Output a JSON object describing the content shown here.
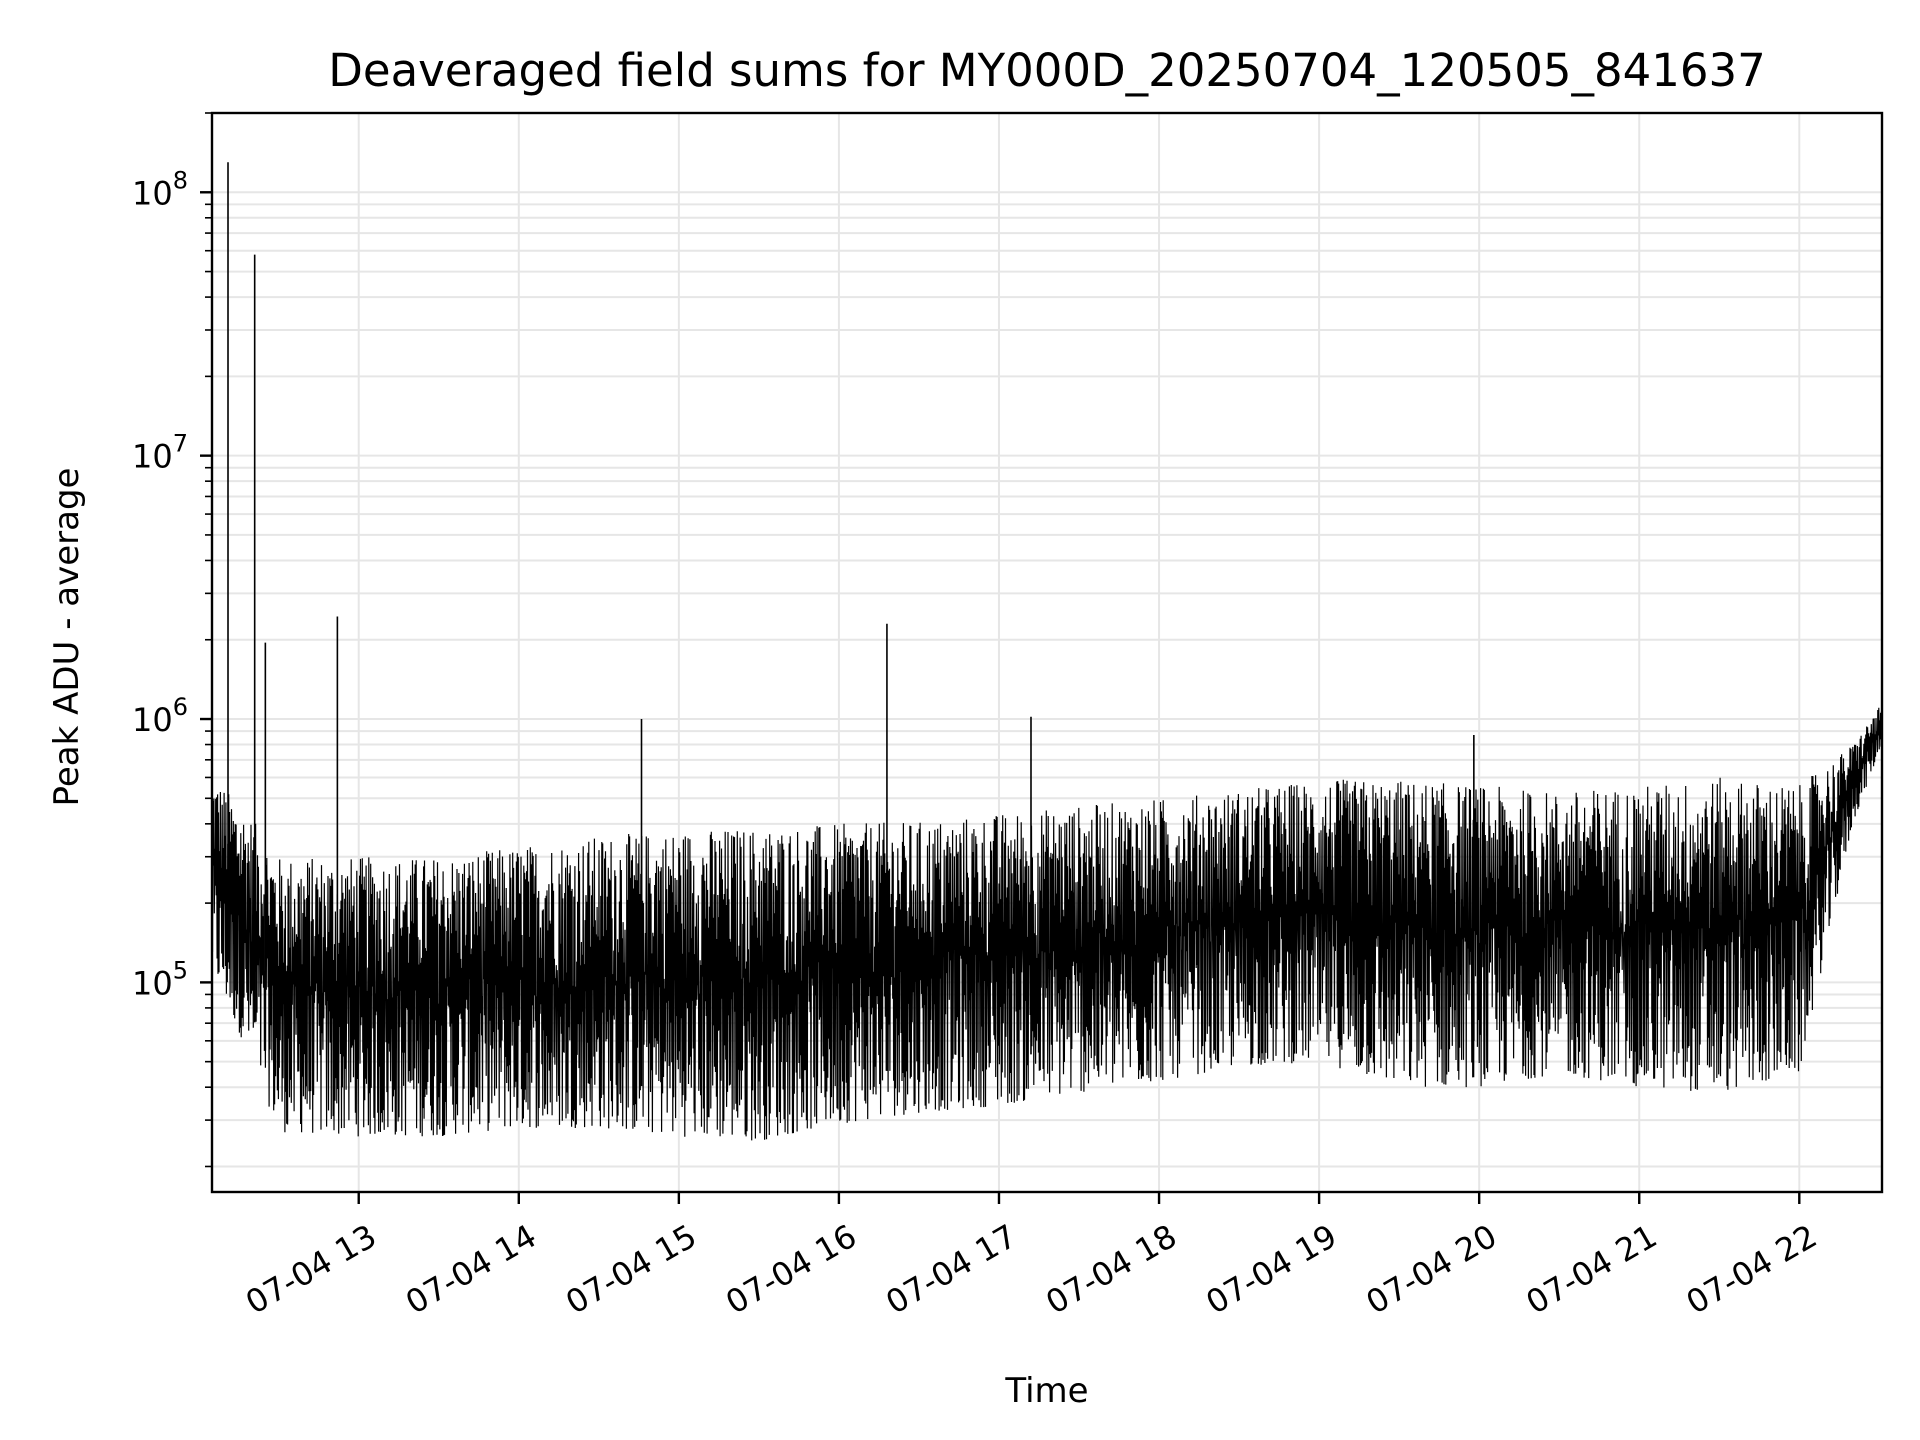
{
  "chart_data": {
    "type": "line",
    "title": "Deaveraged field sums for MY000D_20250704_120505_841637",
    "xlabel": "Time",
    "ylabel": "Peak ADU - average",
    "y_scale": "log",
    "ylim": [
      16000,
      200000000
    ],
    "xlim": [
      "2025-07-04 12:05",
      "2025-07-04 22:31"
    ],
    "grid": true,
    "line_color": "#000000",
    "grid_color": "#e6e6e6",
    "x_ticks": [
      {
        "value": "2025-07-04 13:00",
        "label": "07-04 13"
      },
      {
        "value": "2025-07-04 14:00",
        "label": "07-04 14"
      },
      {
        "value": "2025-07-04 15:00",
        "label": "07-04 15"
      },
      {
        "value": "2025-07-04 16:00",
        "label": "07-04 16"
      },
      {
        "value": "2025-07-04 17:00",
        "label": "07-04 17"
      },
      {
        "value": "2025-07-04 18:00",
        "label": "07-04 18"
      },
      {
        "value": "2025-07-04 19:00",
        "label": "07-04 19"
      },
      {
        "value": "2025-07-04 20:00",
        "label": "07-04 20"
      },
      {
        "value": "2025-07-04 21:00",
        "label": "07-04 21"
      },
      {
        "value": "2025-07-04 22:00",
        "label": "07-04 22"
      }
    ],
    "y_ticks": [
      {
        "value": 100000,
        "base": "10",
        "exp": "5"
      },
      {
        "value": 1000000,
        "base": "10",
        "exp": "6"
      },
      {
        "value": 10000000,
        "base": "10",
        "exp": "7"
      },
      {
        "value": 100000000,
        "base": "10",
        "exp": "8"
      }
    ],
    "envelope": [
      {
        "t": "2025-07-04 12:05",
        "low": 110000,
        "high": 620000
      },
      {
        "t": "2025-07-04 12:20",
        "low": 50000,
        "high": 420000
      },
      {
        "t": "2025-07-04 12:30",
        "low": 27000,
        "high": 300000
      },
      {
        "t": "2025-07-04 13:00",
        "low": 26000,
        "high": 300000
      },
      {
        "t": "2025-07-04 13:30",
        "low": 26000,
        "high": 300000
      },
      {
        "t": "2025-07-04 14:00",
        "low": 28000,
        "high": 330000
      },
      {
        "t": "2025-07-04 14:30",
        "low": 28000,
        "high": 360000
      },
      {
        "t": "2025-07-04 15:00",
        "low": 26000,
        "high": 380000
      },
      {
        "t": "2025-07-04 15:30",
        "low": 25000,
        "high": 390000
      },
      {
        "t": "2025-07-04 16:00",
        "low": 29000,
        "high": 400000
      },
      {
        "t": "2025-07-04 16:30",
        "low": 32000,
        "high": 410000
      },
      {
        "t": "2025-07-04 17:00",
        "low": 34000,
        "high": 440000
      },
      {
        "t": "2025-07-04 17:30",
        "low": 38000,
        "high": 470000
      },
      {
        "t": "2025-07-04 18:00",
        "low": 42000,
        "high": 500000
      },
      {
        "t": "2025-07-04 18:30",
        "low": 48000,
        "high": 540000
      },
      {
        "t": "2025-07-04 19:00",
        "low": 50000,
        "high": 590000
      },
      {
        "t": "2025-07-04 19:30",
        "low": 40000,
        "high": 590000
      },
      {
        "t": "2025-07-04 20:00",
        "low": 40000,
        "high": 560000
      },
      {
        "t": "2025-07-04 20:30",
        "low": 45000,
        "high": 530000
      },
      {
        "t": "2025-07-04 21:00",
        "low": 40000,
        "high": 560000
      },
      {
        "t": "2025-07-04 21:30",
        "low": 38000,
        "high": 600000
      },
      {
        "t": "2025-07-04 22:00",
        "low": 45000,
        "high": 560000
      },
      {
        "t": "2025-07-04 22:20",
        "low": 400000,
        "high": 800000
      },
      {
        "t": "2025-07-04 22:31",
        "low": 800000,
        "high": 1150000
      }
    ],
    "spikes": [
      {
        "t": "2025-07-04 12:11",
        "value": 130000000
      },
      {
        "t": "2025-07-04 12:21",
        "value": 58000000
      },
      {
        "t": "2025-07-04 12:25",
        "value": 1950000
      },
      {
        "t": "2025-07-04 12:52",
        "value": 2450000
      },
      {
        "t": "2025-07-04 14:46",
        "value": 1000000
      },
      {
        "t": "2025-07-04 16:18",
        "value": 2300000
      },
      {
        "t": "2025-07-04 17:12",
        "value": 1020000
      },
      {
        "t": "2025-07-04 19:58",
        "value": 870000
      }
    ]
  }
}
